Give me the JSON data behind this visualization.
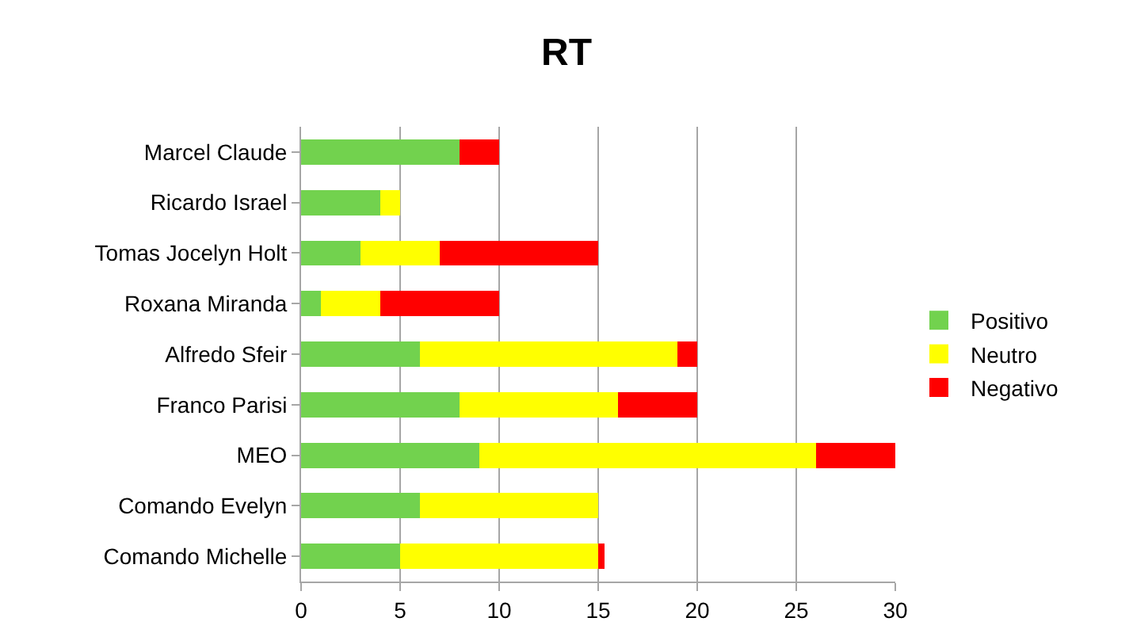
{
  "chart_data": {
    "type": "bar",
    "title": "RT",
    "orientation": "horizontal",
    "stacked": true,
    "categories": [
      "Marcel Claude",
      "Ricardo Israel",
      "Tomas Jocelyn Holt",
      "Roxana Miranda",
      "Alfredo Sfeir",
      "Franco Parisi",
      "MEO",
      "Comando Evelyn",
      "Comando Michelle"
    ],
    "series": [
      {
        "name": "Positivo",
        "color": "#72d24e",
        "values": [
          8,
          4,
          3,
          1,
          6,
          8,
          9,
          6,
          5
        ]
      },
      {
        "name": "Neutro",
        "color": "#ffff00",
        "values": [
          0,
          1,
          4,
          3,
          13,
          8,
          17,
          9,
          10
        ]
      },
      {
        "name": "Negativo",
        "color": "#ff0000",
        "values": [
          2,
          0,
          8,
          6,
          1,
          4,
          4,
          0,
          0.3
        ]
      }
    ],
    "xlim": [
      0,
      30
    ],
    "xticks": [
      0,
      5,
      10,
      15,
      20,
      25,
      30
    ],
    "grid": "x",
    "legend": "right"
  }
}
